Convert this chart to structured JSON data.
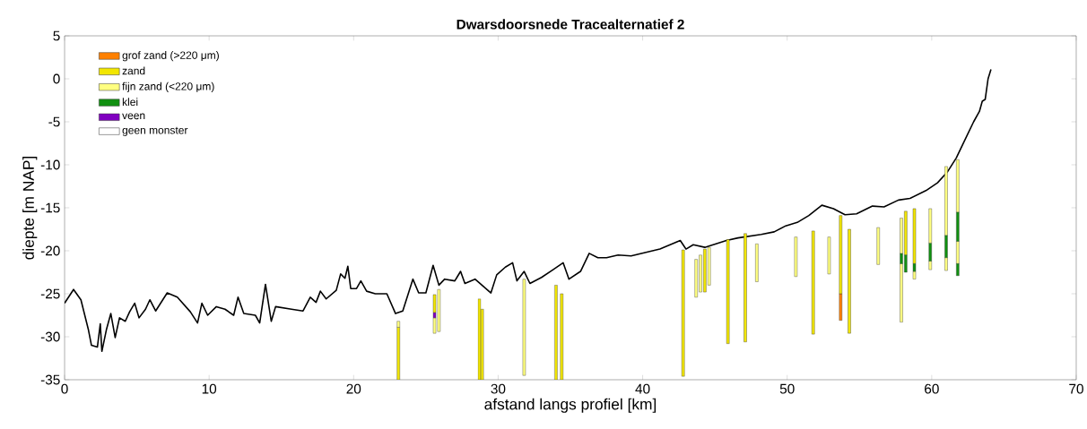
{
  "chart_data": {
    "type": "bar",
    "title": "Dwarsdoorsnede Tracealternatief 2",
    "xlabel": "afstand langs profiel [km]",
    "ylabel": "diepte [m NAP]",
    "xlim": [
      0,
      70
    ],
    "ylim": [
      -35,
      5
    ],
    "xticks": [
      0,
      10,
      20,
      30,
      40,
      50,
      60,
      70
    ],
    "yticks": [
      -35,
      -30,
      -25,
      -20,
      -15,
      -10,
      -5,
      0,
      5
    ],
    "legend": "top left",
    "series": [
      {
        "type": "line",
        "color": "#000000",
        "x": [
          0,
          0.62,
          1.13,
          1.65,
          1.86,
          2.27,
          2.47,
          2.58,
          2.89,
          3.2,
          3.5,
          3.8,
          4.2,
          4.5,
          4.85,
          5.15,
          5.6,
          5.9,
          6.3,
          7.1,
          7.8,
          8.7,
          9.2,
          9.5,
          9.9,
          10.5,
          11.1,
          11.7,
          12.0,
          12.4,
          13.2,
          13.5,
          13.9,
          14.3,
          14.6,
          15.7,
          16.5,
          17.0,
          17.4,
          17.7,
          18.1,
          18.8,
          19.1,
          19.4,
          19.6,
          19.8,
          20.2,
          20.5,
          20.9,
          21.5,
          22.3,
          22.9,
          23.4,
          24.1,
          24.5,
          25.0,
          25.5,
          25.9,
          26.3,
          27.0,
          27.4,
          27.7,
          28.4,
          29.5,
          29.9,
          30.5,
          31.0,
          31.3,
          31.8,
          32.2,
          33.0,
          33.8,
          34.5,
          34.9,
          35.7,
          36.3,
          36.9,
          37.5,
          38.3,
          39.2,
          41.2,
          42.6,
          43.0,
          43.5,
          44.3,
          45.8,
          46.6,
          48.2,
          49.1,
          49.9,
          50.7,
          51.5,
          52.4,
          53.2,
          54.0,
          54.8,
          55.9,
          56.7,
          57.7,
          58.5,
          59.6,
          60.4,
          61.1,
          61.7,
          62.3,
          62.9,
          63.3,
          63.5,
          63.7,
          63.9,
          64.1
        ],
        "values": [
          -26.1,
          -24.5,
          -25.7,
          -29.2,
          -31.0,
          -31.2,
          -28.5,
          -31.7,
          -29.2,
          -27.3,
          -30.1,
          -27.8,
          -28.2,
          -27.1,
          -26.1,
          -27.8,
          -26.8,
          -25.7,
          -27.0,
          -24.9,
          -25.4,
          -27.1,
          -28.4,
          -26.1,
          -27.5,
          -26.5,
          -26.8,
          -27.5,
          -25.4,
          -27.3,
          -27.5,
          -28.4,
          -23.9,
          -28.2,
          -26.5,
          -26.8,
          -27.0,
          -25.4,
          -26.0,
          -24.7,
          -25.6,
          -24.6,
          -22.7,
          -23.2,
          -21.8,
          -24.4,
          -24.4,
          -23.5,
          -24.7,
          -25.0,
          -25.0,
          -27.3,
          -27.0,
          -23.3,
          -24.9,
          -24.9,
          -21.7,
          -24.0,
          -23.3,
          -23.5,
          -22.4,
          -23.8,
          -23.3,
          -24.9,
          -22.8,
          -21.9,
          -21.4,
          -23.5,
          -22.4,
          -23.8,
          -23.1,
          -22.2,
          -21.4,
          -23.3,
          -22.4,
          -20.3,
          -20.8,
          -20.8,
          -20.5,
          -20.6,
          -19.8,
          -18.8,
          -19.8,
          -19.3,
          -19.6,
          -18.8,
          -18.5,
          -18.1,
          -17.8,
          -17.1,
          -16.7,
          -15.9,
          -14.7,
          -15.1,
          -15.8,
          -15.7,
          -14.8,
          -14.9,
          -14.1,
          -13.9,
          -13.0,
          -12.1,
          -10.8,
          -9.2,
          -7.1,
          -5.0,
          -3.8,
          -2.6,
          -2.4,
          0.0,
          1.1
        ]
      },
      {
        "name": "grof zand (>220 μm)",
        "color": "#ff8000",
        "x": [
          53.7
        ],
        "base": [
          -28.1
        ],
        "values": [
          3.1
        ]
      },
      {
        "name": "zand",
        "color": "#f2e600",
        "x": [
          23.1,
          25.6,
          28.7,
          28.9,
          34.0,
          34.4,
          42.8,
          44.3,
          45.9,
          47.1,
          51.8,
          53.7,
          54.3,
          58.2,
          58.8
        ],
        "base": [
          -35,
          -27.2,
          -35,
          -35,
          -35,
          -35,
          -34.6,
          -24.8,
          -30.8,
          -30.6,
          -29.7,
          -25.0,
          -29.6,
          -20.5,
          -21.5
        ],
        "values": [
          6.1,
          2.1,
          9.4,
          8.2,
          11.0,
          10.0,
          14.7,
          5.0,
          12.1,
          12.6,
          12.0,
          9.1,
          12.1,
          5.1,
          6.4
        ]
      },
      {
        "name": "fijn zand (<220 μm)",
        "color": "#ffff80",
        "x": [
          23.1,
          25.6,
          25.9,
          31.8,
          43.7,
          44.0,
          44.6,
          47.9,
          50.6,
          52.9,
          56.3,
          57.9,
          58.8,
          59.9,
          61.0,
          61.8
        ],
        "base": [
          -28.9,
          -29.6,
          -29.4,
          -34.5,
          -25.4,
          -24.8,
          -24.0,
          -23.6,
          -23.0,
          -22.7,
          -21.6,
          -28.3,
          -23.3,
          -22.2,
          -22.3,
          -21.5
        ],
        "values": [
          0.7,
          1.8,
          4.9,
          11.2,
          4.4,
          4.3,
          4.4,
          4.4,
          4.6,
          4.3,
          4.3,
          6.8,
          0.9,
          1.0,
          1.5,
          2.6
        ]
      },
      {
        "name": "klei",
        "color": "#109010",
        "x": [
          57.9,
          58.2,
          58.8,
          59.9,
          61.0,
          61.8
        ],
        "base": [
          -21.5,
          -22.5,
          -22.4,
          -21.2,
          -20.8,
          -18.9
        ],
        "values": [
          1.2,
          2.0,
          0.9,
          2.1,
          2.6,
          3.4
        ]
      },
      {
        "name": "veen",
        "color": "#8000c0",
        "x": [
          25.6
        ],
        "base": [
          -27.8
        ],
        "values": [
          0.6
        ]
      },
      {
        "name": "geen monster",
        "color": "#ffffff"
      },
      {
        "color": "#ffff80",
        "x": [
          57.9,
          59.9,
          61.0,
          61.8
        ],
        "base": [
          -20.3,
          -19.1,
          -18.2,
          -15.5
        ],
        "values": [
          4.1,
          4.0,
          8.0,
          6.1
        ]
      },
      {
        "color": "#109010",
        "x": [
          61.8
        ],
        "base": [
          -22.9
        ],
        "values": [
          1.4
        ]
      }
    ]
  }
}
